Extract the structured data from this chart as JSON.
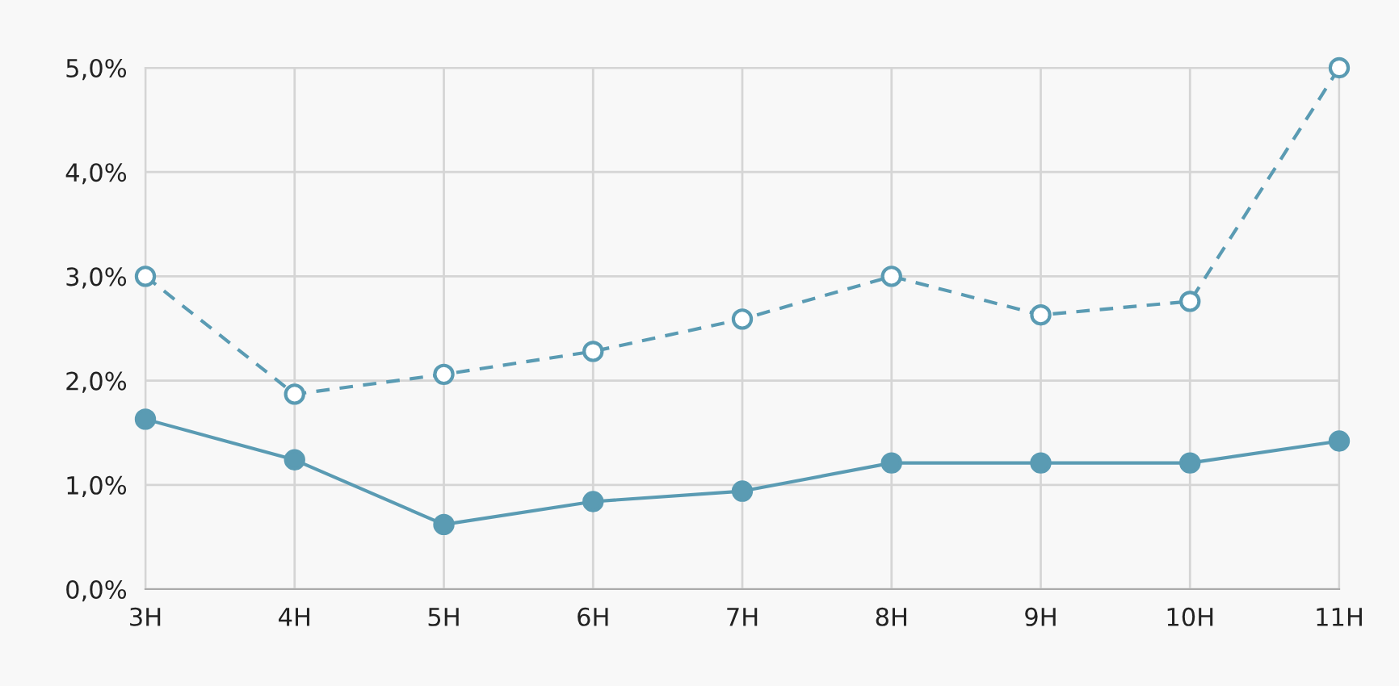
{
  "chart_data": {
    "type": "line",
    "categories": [
      "3H",
      "4H",
      "5H",
      "6H",
      "7H",
      "8H",
      "9H",
      "10H",
      "11H"
    ],
    "series": [
      {
        "color": "#5a9bb3",
        "line_style": "dashed",
        "values": [
          3.0,
          1.87,
          2.06,
          2.28,
          2.59,
          3.0,
          2.63,
          2.76,
          5.0
        ]
      },
      {
        "color": "#5a9bb3",
        "line_style": "solid",
        "values": [
          1.63,
          1.24,
          0.62,
          0.84,
          0.94,
          1.21,
          1.21,
          1.21,
          1.42
        ]
      }
    ],
    "ylim": [
      0,
      5
    ],
    "yticks": [
      {
        "value": 0,
        "label": "0,0%"
      },
      {
        "value": 1,
        "label": "1,0%"
      },
      {
        "value": 2,
        "label": "2,0%"
      },
      {
        "value": 3,
        "label": "3,0%"
      },
      {
        "value": 4,
        "label": "4,0%"
      },
      {
        "value": 5,
        "label": "5,0%"
      }
    ],
    "grid": true,
    "marker": "circle"
  }
}
